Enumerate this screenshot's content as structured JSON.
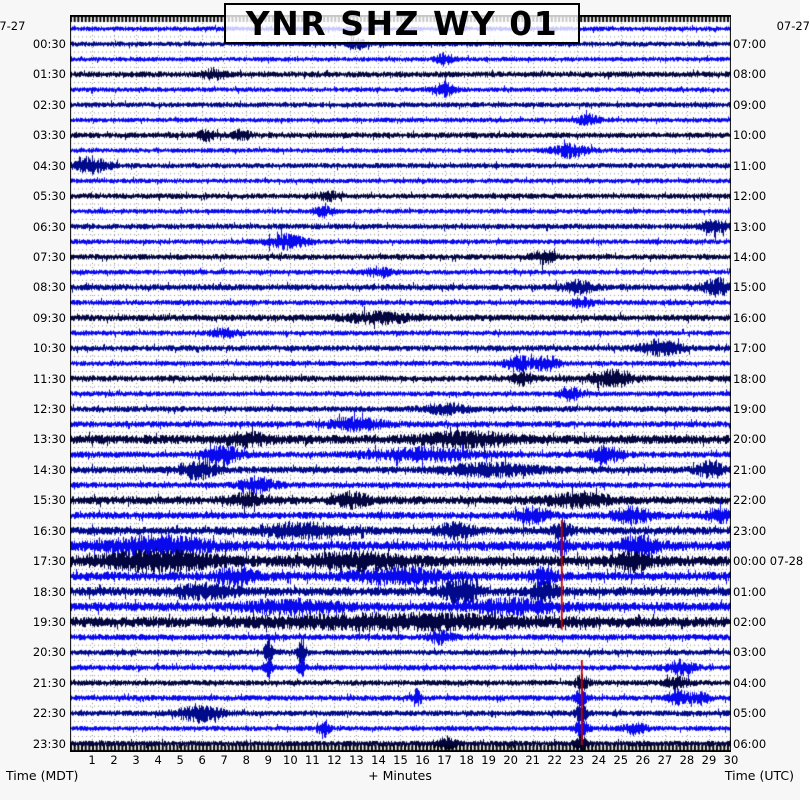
{
  "title": "YNR SHZ WY 01",
  "dates": {
    "top_left": "07-27",
    "top_right": "07-27"
  },
  "footer": {
    "left": "Time (MDT)",
    "center": "+ Minutes",
    "right": "Time (UTC)"
  },
  "axis": {
    "minutes": [
      1,
      2,
      3,
      4,
      5,
      6,
      7,
      8,
      9,
      10,
      11,
      12,
      13,
      14,
      15,
      16,
      17,
      18,
      19,
      20,
      21,
      22,
      23,
      24,
      25,
      26,
      27,
      28,
      29,
      30
    ]
  },
  "colors": {
    "background": "#f7f7f7",
    "plot_bg": "#ffffff",
    "grid": "#909090",
    "ruler": "#000000",
    "event_line": "#c80000",
    "trace_cycle": [
      "#0909ee",
      "#000a8a",
      "#0909ee",
      "#02053f"
    ]
  },
  "chart_data": {
    "type": "line",
    "subtype": "helicorder-seismogram",
    "station": "YNR SHZ WY 01",
    "minutes_per_line": 30,
    "lines_total": 48,
    "left_axis": "Time (MDT)",
    "right_axis": "Time (UTC)",
    "date_mdt": "07-27",
    "utc_rollover_label": "00:00 07-28",
    "grid": "dotted, 1-minute vertical, half-row horizontal",
    "event_lines": [
      {
        "minute": 22.32,
        "row_start": 32.3,
        "row_end": 39.5
      },
      {
        "minute": 23.23,
        "row_start": 41.5,
        "row_end": 47.1
      }
    ],
    "rows": [
      {
        "l": null,
        "r": null,
        "a": 2.3,
        "e": []
      },
      {
        "l": "00:30",
        "r": "07:00",
        "a": 2.4,
        "e": [
          [
            13,
            4,
            0.4
          ]
        ]
      },
      {
        "l": null,
        "r": null,
        "a": 2.2,
        "e": [
          [
            17,
            5,
            0.4
          ]
        ]
      },
      {
        "l": "01:30",
        "r": "08:00",
        "a": 2.8,
        "e": [
          [
            6.5,
            4,
            0.5
          ]
        ]
      },
      {
        "l": null,
        "r": null,
        "a": 2.3,
        "e": [
          [
            17,
            6,
            0.45
          ]
        ]
      },
      {
        "l": "02:30",
        "r": "09:00",
        "a": 2.5,
        "e": []
      },
      {
        "l": null,
        "r": null,
        "a": 2.3,
        "e": [
          [
            23.5,
            4,
            0.5
          ]
        ]
      },
      {
        "l": "03:30",
        "r": "10:00",
        "a": 2.7,
        "e": [
          [
            6.2,
            4,
            0.4
          ],
          [
            7.8,
            4,
            0.4
          ]
        ]
      },
      {
        "l": null,
        "r": null,
        "a": 2.3,
        "e": [
          [
            22.7,
            6,
            0.8
          ]
        ]
      },
      {
        "l": "04:30",
        "r": "11:00",
        "a": 2.5,
        "e": [
          [
            0.9,
            6,
            0.9
          ]
        ]
      },
      {
        "l": null,
        "r": null,
        "a": 2.3,
        "e": []
      },
      {
        "l": "05:30",
        "r": "12:00",
        "a": 2.6,
        "e": [
          [
            11.7,
            4,
            0.4
          ]
        ]
      },
      {
        "l": null,
        "r": null,
        "a": 2.3,
        "e": [
          [
            11.5,
            4,
            0.4
          ]
        ]
      },
      {
        "l": "06:30",
        "r": "13:00",
        "a": 2.7,
        "e": [
          [
            29.3,
            5,
            0.6
          ]
        ]
      },
      {
        "l": null,
        "r": null,
        "a": 2.4,
        "e": [
          [
            9.8,
            6,
            0.9
          ]
        ]
      },
      {
        "l": "07:30",
        "r": "14:00",
        "a": 2.7,
        "e": [
          [
            21.5,
            5,
            0.5
          ]
        ]
      },
      {
        "l": null,
        "r": null,
        "a": 2.4,
        "e": [
          [
            14,
            4,
            0.6
          ]
        ]
      },
      {
        "l": "08:30",
        "r": "15:00",
        "a": 3.0,
        "e": [
          [
            23,
            5,
            0.7
          ],
          [
            29.4,
            7,
            0.7
          ]
        ]
      },
      {
        "l": null,
        "r": null,
        "a": 2.5,
        "e": [
          [
            23.2,
            4,
            0.5
          ]
        ]
      },
      {
        "l": "09:30",
        "r": "16:00",
        "a": 3.1,
        "e": [
          [
            14,
            4,
            1.5
          ]
        ]
      },
      {
        "l": null,
        "r": null,
        "a": 2.5,
        "e": [
          [
            7,
            4,
            0.6
          ]
        ]
      },
      {
        "l": "10:30",
        "r": "17:00",
        "a": 2.8,
        "e": [
          [
            26.8,
            7,
            0.9
          ]
        ]
      },
      {
        "l": null,
        "r": null,
        "a": 2.5,
        "e": [
          [
            20.3,
            6,
            0.6
          ],
          [
            21.6,
            6,
            0.6
          ]
        ]
      },
      {
        "l": "11:30",
        "r": "18:00",
        "a": 3.0,
        "e": [
          [
            20.5,
            5,
            0.5
          ],
          [
            24.6,
            7,
            0.9
          ]
        ]
      },
      {
        "l": null,
        "r": null,
        "a": 2.5,
        "e": [
          [
            22.7,
            5,
            0.5
          ]
        ]
      },
      {
        "l": "12:30",
        "r": "19:00",
        "a": 2.8,
        "e": [
          [
            17,
            4,
            1
          ]
        ]
      },
      {
        "l": null,
        "r": null,
        "a": 3.0,
        "e": [
          [
            13,
            5,
            1.2
          ]
        ]
      },
      {
        "l": "13:30",
        "r": "20:00",
        "a": 4.3,
        "e": [
          [
            8,
            4,
            1
          ],
          [
            18,
            5,
            2
          ]
        ]
      },
      {
        "l": null,
        "r": null,
        "a": 3.0,
        "e": [
          [
            6.8,
            9,
            0.8
          ],
          [
            16,
            5,
            2.5
          ],
          [
            24.3,
            7,
            0.7
          ]
        ]
      },
      {
        "l": "14:30",
        "r": "21:00",
        "a": 3.3,
        "e": [
          [
            5.8,
            7,
            0.8
          ],
          [
            19,
            5,
            2
          ],
          [
            29,
            6,
            0.6
          ]
        ]
      },
      {
        "l": null,
        "r": null,
        "a": 2.9,
        "e": [
          [
            8.5,
            6,
            0.8
          ]
        ]
      },
      {
        "l": "15:30",
        "r": "22:00",
        "a": 3.8,
        "e": [
          [
            8,
            5,
            0.8
          ],
          [
            12.8,
            5,
            0.8
          ],
          [
            23,
            5,
            1.5
          ]
        ]
      },
      {
        "l": null,
        "r": null,
        "a": 3.3,
        "e": [
          [
            21,
            6,
            0.8
          ],
          [
            25.5,
            7,
            0.8
          ],
          [
            29.5,
            7,
            0.5
          ]
        ]
      },
      {
        "l": "16:30",
        "r": "23:00",
        "a": 3.8,
        "e": [
          [
            10.5,
            6,
            1.8
          ],
          [
            17.5,
            6,
            0.8
          ],
          [
            22.3,
            8,
            0.4
          ]
        ]
      },
      {
        "l": null,
        "r": null,
        "a": 4.6,
        "e": [
          [
            4,
            7,
            2.2
          ],
          [
            22.3,
            6,
            0.3
          ],
          [
            25.8,
            8,
            0.8
          ]
        ]
      },
      {
        "l": "17:30",
        "r": "00:00 07-28",
        "a": 5.0,
        "e": [
          [
            4,
            7,
            2.5
          ],
          [
            13,
            6,
            2
          ],
          [
            25.5,
            7,
            0.8
          ]
        ]
      },
      {
        "l": null,
        "r": null,
        "a": 4.2,
        "e": [
          [
            7.5,
            7,
            0.8
          ],
          [
            15,
            6,
            2
          ],
          [
            21.5,
            6,
            0.6
          ]
        ]
      },
      {
        "l": "18:30",
        "r": "01:00",
        "a": 4.2,
        "e": [
          [
            6,
            5,
            1.5
          ],
          [
            17.7,
            11,
            0.7
          ],
          [
            21.5,
            7,
            0.6
          ]
        ]
      },
      {
        "l": null,
        "r": null,
        "a": 4.3,
        "e": [
          [
            10,
            5,
            2
          ],
          [
            20,
            5,
            2
          ]
        ]
      },
      {
        "l": "19:30",
        "r": "02:00",
        "a": 4.8,
        "e": [
          [
            15,
            5,
            6
          ]
        ]
      },
      {
        "l": null,
        "r": null,
        "a": 2.9,
        "e": [
          [
            16.8,
            5,
            0.5
          ]
        ]
      },
      {
        "l": "20:30",
        "r": "03:00",
        "a": 2.7,
        "e": [
          [
            9,
            12,
            0.18
          ],
          [
            10.5,
            12,
            0.18
          ]
        ]
      },
      {
        "l": null,
        "r": null,
        "a": 2.7,
        "e": [
          [
            9,
            9,
            0.15
          ],
          [
            10.5,
            8,
            0.15
          ],
          [
            27.7,
            6,
            0.6
          ]
        ]
      },
      {
        "l": "21:30",
        "r": "04:00",
        "a": 2.7,
        "e": [
          [
            23.2,
            6,
            0.3
          ],
          [
            27.5,
            5,
            0.5
          ]
        ]
      },
      {
        "l": null,
        "r": null,
        "a": 2.7,
        "e": [
          [
            15.7,
            7,
            0.2
          ],
          [
            23.2,
            7,
            0.3
          ],
          [
            27.6,
            6,
            0.5
          ],
          [
            28.6,
            5,
            0.4
          ]
        ]
      },
      {
        "l": "22:30",
        "r": "05:00",
        "a": 2.7,
        "e": [
          [
            5.9,
            7,
            1.0
          ],
          [
            23.2,
            7,
            0.3
          ]
        ]
      },
      {
        "l": null,
        "r": null,
        "a": 2.4,
        "e": [
          [
            11.5,
            8,
            0.25
          ],
          [
            23.2,
            8,
            0.3
          ],
          [
            25.6,
            5,
            0.5
          ]
        ]
      },
      {
        "l": "23:30",
        "r": "06:00",
        "a": 2.7,
        "e": [
          [
            17,
            4,
            0.5
          ],
          [
            23.2,
            6,
            0.3
          ]
        ]
      }
    ]
  }
}
